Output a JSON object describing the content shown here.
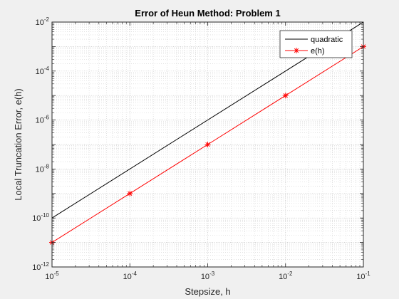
{
  "chart_data": {
    "type": "line",
    "title": "Error of Heun Method: Problem 1",
    "xlabel": "Stepsize, h",
    "ylabel": "Local Truncation Error, e(h)",
    "xscale": "log",
    "yscale": "log",
    "xlim": [
      1e-05,
      0.1
    ],
    "ylim": [
      1e-12,
      0.01
    ],
    "grid": "major and minor",
    "legend_position": "top-right",
    "x_ticks": [
      {
        "base": "10",
        "exp": "-5",
        "value": 1e-05
      },
      {
        "base": "10",
        "exp": "-4",
        "value": 0.0001
      },
      {
        "base": "10",
        "exp": "-3",
        "value": 0.001
      },
      {
        "base": "10",
        "exp": "-2",
        "value": 0.01
      },
      {
        "base": "10",
        "exp": "-1",
        "value": 0.1
      }
    ],
    "y_ticks": [
      {
        "base": "10",
        "exp": "-12",
        "value": 1e-12
      },
      {
        "base": "10",
        "exp": "-10",
        "value": 1e-10
      },
      {
        "base": "10",
        "exp": "-8",
        "value": 1e-08
      },
      {
        "base": "10",
        "exp": "-6",
        "value": 1e-06
      },
      {
        "base": "10",
        "exp": "-4",
        "value": 0.0001
      },
      {
        "base": "10",
        "exp": "-2",
        "value": 0.01
      }
    ],
    "series": [
      {
        "name": "quadratic",
        "color": "#000000",
        "marker": "none",
        "x": [
          1e-05,
          0.1
        ],
        "y": [
          1e-10,
          0.01
        ]
      },
      {
        "name": "e(h)",
        "color": "#ff0000",
        "marker": "asterisk",
        "x": [
          1e-05,
          0.0001,
          0.001,
          0.01,
          0.1
        ],
        "y": [
          1e-11,
          1e-09,
          1e-07,
          1e-05,
          0.001
        ]
      }
    ]
  }
}
